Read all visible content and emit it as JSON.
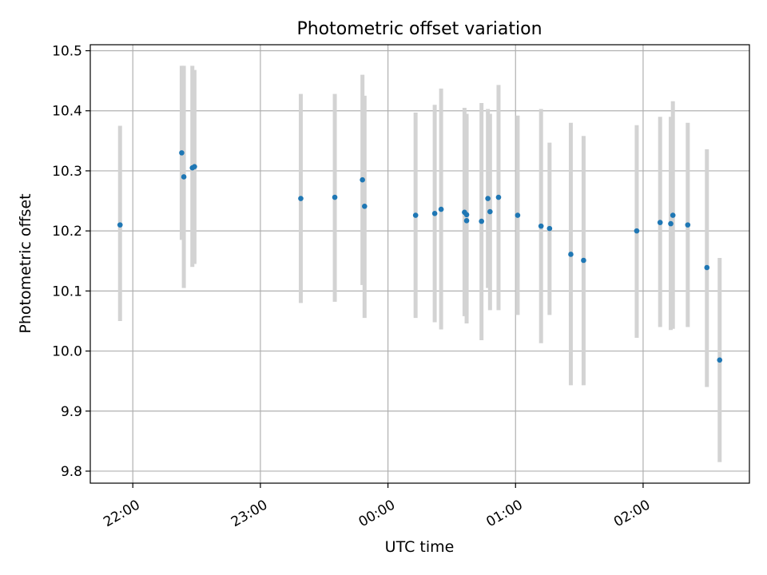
{
  "chart_data": {
    "type": "scatter",
    "title": "Photometric offset variation",
    "xlabel": "UTC time",
    "ylabel": "Photometric offset",
    "x_unit": "UTC time (HH:MM), times after midnight on following day",
    "xlim": [
      "21:40",
      "02:50 (+1d)"
    ],
    "ylim": [
      9.78,
      10.51
    ],
    "x_ticks": [
      "22:00",
      "23:00",
      "00:00",
      "01:00",
      "02:00"
    ],
    "y_ticks": [
      "9.8",
      "9.9",
      "10.0",
      "10.1",
      "10.2",
      "10.3",
      "10.4",
      "10.5"
    ],
    "grid": true,
    "legend": "none",
    "colors": {
      "point": "#1f77b4",
      "errorbar": "#d3d3d3",
      "grid": "#b0b0b0"
    },
    "series": [
      {
        "points": [
          {
            "x": "21:54",
            "y": 10.21,
            "err_low": 10.05,
            "err_high": 10.375
          },
          {
            "x": "22:23",
            "y": 10.33,
            "err_low": 10.185,
            "err_high": 10.475
          },
          {
            "x": "22:24",
            "y": 10.29,
            "err_low": 10.105,
            "err_high": 10.475
          },
          {
            "x": "22:28",
            "y": 10.305,
            "err_low": 10.14,
            "err_high": 10.475
          },
          {
            "x": "22:29",
            "y": 10.307,
            "err_low": 10.145,
            "err_high": 10.468
          },
          {
            "x": "23:19",
            "y": 10.254,
            "err_low": 10.08,
            "err_high": 10.428
          },
          {
            "x": "23:35",
            "y": 10.256,
            "err_low": 10.082,
            "err_high": 10.428
          },
          {
            "x": "23:48",
            "y": 10.285,
            "err_low": 10.11,
            "err_high": 10.46
          },
          {
            "x": "23:49",
            "y": 10.241,
            "err_low": 10.055,
            "err_high": 10.425
          },
          {
            "x": "00:13",
            "y": 10.226,
            "err_low": 10.055,
            "err_high": 10.397
          },
          {
            "x": "00:22",
            "y": 10.229,
            "err_low": 10.048,
            "err_high": 10.41
          },
          {
            "x": "00:25",
            "y": 10.236,
            "err_low": 10.036,
            "err_high": 10.437
          },
          {
            "x": "00:36",
            "y": 10.231,
            "err_low": 10.058,
            "err_high": 10.405
          },
          {
            "x": "00:37",
            "y": 10.227,
            "err_low": 10.06,
            "err_high": 10.395
          },
          {
            "x": "00:37",
            "y": 10.217,
            "err_low": 10.046,
            "err_high": 10.39
          },
          {
            "x": "00:44",
            "y": 10.216,
            "err_low": 10.018,
            "err_high": 10.413
          },
          {
            "x": "00:47",
            "y": 10.254,
            "err_low": 10.105,
            "err_high": 10.403
          },
          {
            "x": "00:48",
            "y": 10.232,
            "err_low": 10.068,
            "err_high": 10.395
          },
          {
            "x": "00:52",
            "y": 10.256,
            "err_low": 10.068,
            "err_high": 10.443
          },
          {
            "x": "01:01",
            "y": 10.226,
            "err_low": 10.06,
            "err_high": 10.392
          },
          {
            "x": "01:12",
            "y": 10.208,
            "err_low": 10.013,
            "err_high": 10.403
          },
          {
            "x": "01:16",
            "y": 10.204,
            "err_low": 10.06,
            "err_high": 10.347
          },
          {
            "x": "01:26",
            "y": 10.161,
            "err_low": 9.943,
            "err_high": 10.38
          },
          {
            "x": "01:32",
            "y": 10.151,
            "err_low": 9.943,
            "err_high": 10.358
          },
          {
            "x": "01:57",
            "y": 10.2,
            "err_low": 10.022,
            "err_high": 10.376
          },
          {
            "x": "02:08",
            "y": 10.214,
            "err_low": 10.04,
            "err_high": 10.39
          },
          {
            "x": "02:13",
            "y": 10.212,
            "err_low": 10.035,
            "err_high": 10.39
          },
          {
            "x": "02:14",
            "y": 10.226,
            "err_low": 10.037,
            "err_high": 10.416
          },
          {
            "x": "02:21",
            "y": 10.21,
            "err_low": 10.04,
            "err_high": 10.38
          },
          {
            "x": "02:30",
            "y": 10.139,
            "err_low": 9.94,
            "err_high": 10.336
          },
          {
            "x": "02:36",
            "y": 9.985,
            "err_low": 9.815,
            "err_high": 10.155
          }
        ]
      }
    ]
  }
}
